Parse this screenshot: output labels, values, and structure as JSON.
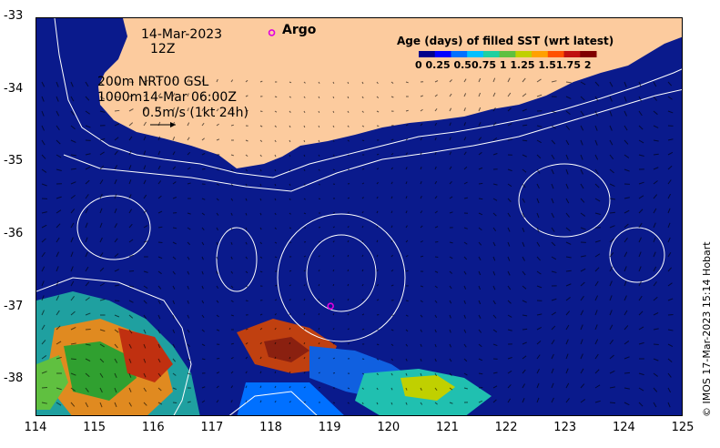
{
  "map": {
    "date_line": "14-Mar-2023",
    "time_line": "12Z",
    "contour_info_1": "200m  NRT00 GSL",
    "contour_info_2": "1000m14-Mar 06:00Z",
    "scale_label": "0.5m/s (1kt 24h)",
    "argo_label": "Argo",
    "colorbar_title": "Age (days) of filled SST (wrt latest)",
    "colorbar_tick_labels": "0  0.25 0.50.75   1   1.25 1.51.75   2",
    "credit": "© IMOS 17-Mar-2023 15:14 Hobart",
    "x_ticks": [
      "114",
      "115",
      "116",
      "117",
      "118",
      "119",
      "120",
      "121",
      "122",
      "123",
      "124",
      "125"
    ],
    "y_ticks": [
      "-33",
      "-34",
      "-35",
      "-36",
      "-37",
      "-38"
    ],
    "x_range": [
      114,
      125
    ],
    "y_range": [
      -38.5,
      -33
    ],
    "argo_floats": [
      {
        "lon": 118.0,
        "lat": -33.2
      },
      {
        "lon": 119.0,
        "lat": -36.97
      }
    ],
    "colors": {
      "ocean": "#0a1a8c",
      "land": "#fccb9e",
      "contour": "#ffffff",
      "argo": "#e000e0"
    },
    "colorbar_colors": [
      "#00008b",
      "#0000ff",
      "#0070ff",
      "#00c0ff",
      "#20d0a0",
      "#60c040",
      "#c0d000",
      "#ffa000",
      "#ff5000",
      "#c01010",
      "#800000"
    ]
  }
}
